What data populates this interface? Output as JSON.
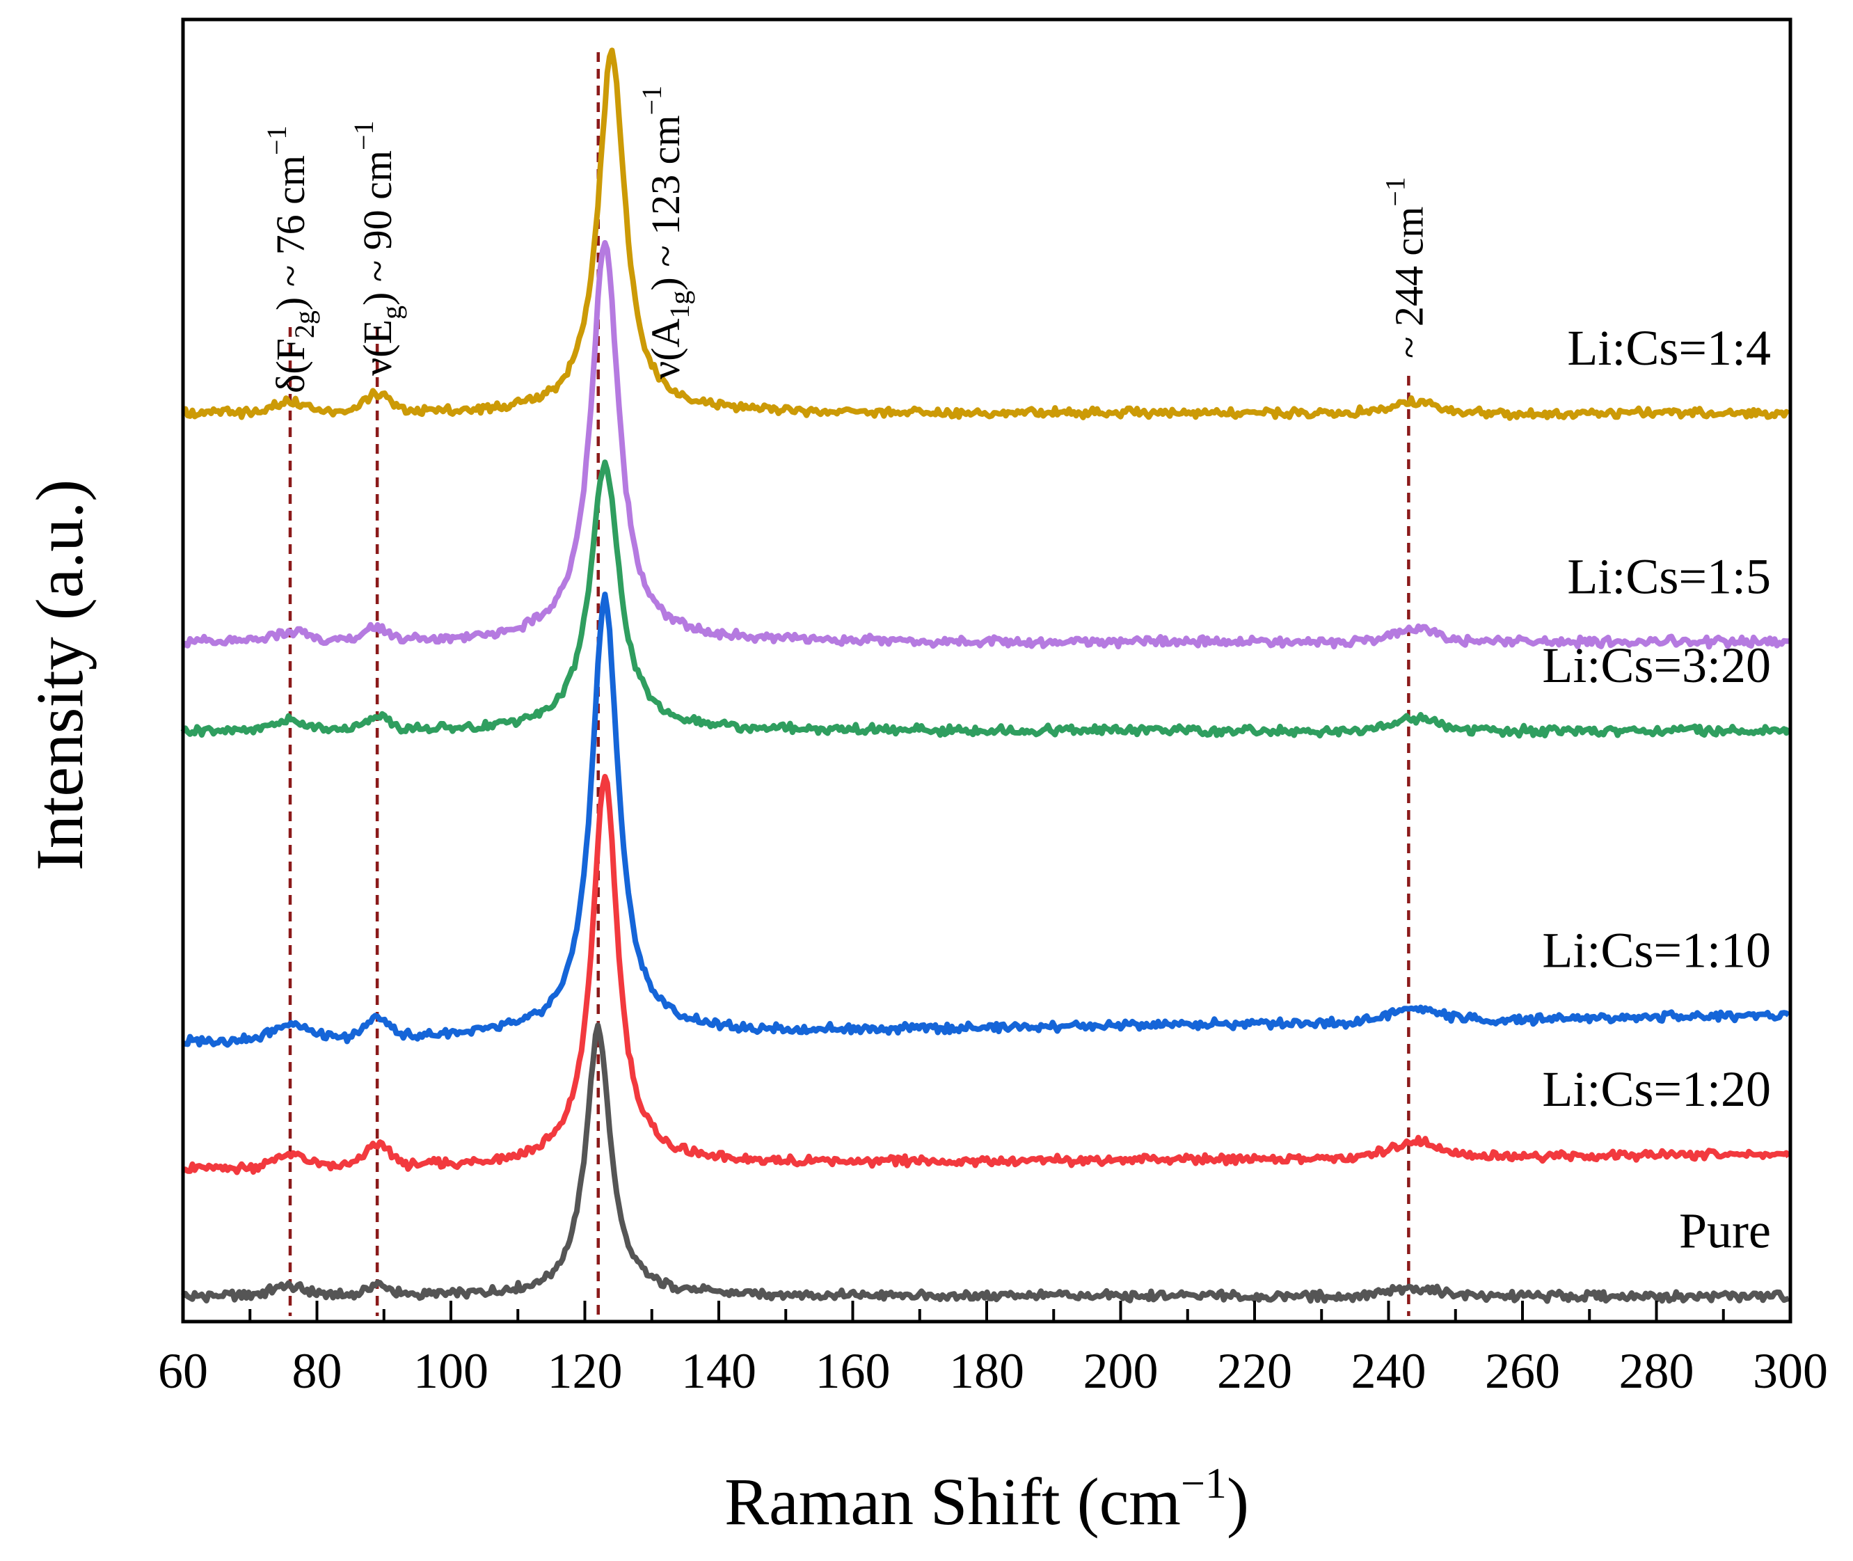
{
  "chart_data": {
    "type": "line",
    "title": "",
    "xlabel_main": "Raman Shift (cm",
    "xlabel_sup": "−1",
    "xlabel_close": ")",
    "ylabel": "Intensity (a.u.)",
    "xlim": [
      60,
      300
    ],
    "xticks": [
      "60",
      "80",
      "100",
      "120",
      "140",
      "160",
      "180",
      "200",
      "220",
      "240",
      "260",
      "280",
      "300"
    ],
    "y_ticks_shown": false,
    "grid": false,
    "legend": "inline-right",
    "reference_lines": [
      {
        "x": 76,
        "color": "#8b1a1a",
        "style": "dashed"
      },
      {
        "x": 89,
        "color": "#8b1a1a",
        "style": "dashed"
      },
      {
        "x": 122,
        "color": "#8b1a1a",
        "style": "dashed"
      },
      {
        "x": 243,
        "color": "#8b1a1a",
        "style": "dashed"
      }
    ],
    "annotations": [
      {
        "x": 76,
        "base": "δ(F",
        "sub": "2g",
        "rest": ") ~ 76 cm",
        "sup": "−1"
      },
      {
        "x": 89,
        "base": "ν(E",
        "sub": "g",
        "rest": ") ~ 90 cm",
        "sup": "−1"
      },
      {
        "x": 132,
        "base": "ν(A",
        "sub": "1g",
        "rest": ") ~ 123 cm",
        "sup": "−1"
      },
      {
        "x": 243,
        "base": "~ 244 cm",
        "sub": "",
        "rest": "",
        "sup": "−1"
      }
    ],
    "series": [
      {
        "name": "Pure",
        "label": "Pure",
        "color": "#555555",
        "baseline": 4,
        "slope": 0,
        "peak_pos": 122,
        "peak_height": 42,
        "peak_width": 2.2,
        "p76": 1.5,
        "p89": 1.5,
        "p244": 1.2
      },
      {
        "name": "Li:Cs=1:20",
        "label": "Li:Cs=1:20",
        "color": "#f2393e",
        "baseline": 24,
        "slope": 0.01,
        "peak_pos": 123,
        "peak_height": 61,
        "peak_width": 2.3,
        "p76": 2.0,
        "p89": 3.5,
        "p244": 2.5
      },
      {
        "name": "Li:Cs=1:10",
        "label": "Li:Cs=1:10",
        "color": "#1565d8",
        "baseline": 44,
        "slope": 0.018,
        "peak_pos": 123,
        "peak_height": 69,
        "peak_width": 2.4,
        "p76": 2.5,
        "p89": 3.0,
        "p244": 2.0
      },
      {
        "name": "Li:Cs=3:20",
        "label": "Li:Cs=3:20",
        "color": "#2f9e5f",
        "baseline": 93,
        "slope": 0,
        "peak_pos": 123,
        "peak_height": 42,
        "peak_width": 2.6,
        "p76": 1.5,
        "p89": 2.0,
        "p244": 2.0
      },
      {
        "name": "Li:Cs=1:5",
        "label": "Li:Cs=1:5",
        "color": "#b57ae0",
        "baseline": 107,
        "slope": 0,
        "peak_pos": 123,
        "peak_height": 63,
        "peak_width": 2.5,
        "p76": 1.5,
        "p89": 2.0,
        "p244": 2.0
      },
      {
        "name": "Li:Cs=1:4",
        "label": "Li:Cs=1:4",
        "color": "#cc9a06",
        "baseline": 143,
        "slope": 0,
        "peak_pos": 124,
        "peak_height": 57,
        "peak_width": 2.4,
        "p76": 1.5,
        "p89": 3.0,
        "p244": 1.8
      }
    ],
    "ylim": [
      0,
      205
    ]
  }
}
